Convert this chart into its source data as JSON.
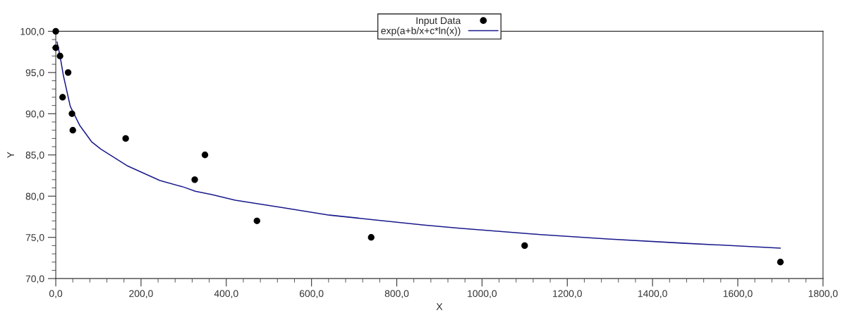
{
  "chart_data": {
    "type": "scatter",
    "xlabel": "X",
    "ylabel": "Y",
    "xlim": [
      0,
      1800
    ],
    "xticks": [
      {
        "value": 0,
        "label": "0,0"
      },
      {
        "value": 200,
        "label": "200,0"
      },
      {
        "value": 400,
        "label": "400,0"
      },
      {
        "value": 600,
        "label": "600,0"
      },
      {
        "value": 800,
        "label": "800,0"
      },
      {
        "value": 1000,
        "label": "1000,0"
      },
      {
        "value": 1200,
        "label": "1200,0"
      },
      {
        "value": 1400,
        "label": "1400,0"
      },
      {
        "value": 1600,
        "label": "1600,0"
      },
      {
        "value": 1800,
        "label": "1800,0"
      }
    ],
    "ylim": [
      70,
      100
    ],
    "yticks": [
      {
        "value": 70,
        "label": "70,0"
      },
      {
        "value": 75,
        "label": "75,0"
      },
      {
        "value": 80,
        "label": "80,0"
      },
      {
        "value": 85,
        "label": "85,0"
      },
      {
        "value": 90,
        "label": "90,0"
      },
      {
        "value": 95,
        "label": "95,0"
      },
      {
        "value": 100,
        "label": "100,0"
      }
    ],
    "grid": false,
    "legend": "top",
    "series": [
      {
        "name": "Input Data",
        "marker": "circle",
        "color": "#000000",
        "x": [
          0,
          0,
          10,
          29,
          16,
          38,
          40,
          164,
          326,
          350,
          472,
          740,
          1100,
          1700
        ],
        "values": [
          100,
          98,
          97,
          95,
          92,
          90,
          88,
          87,
          82,
          85,
          77,
          75,
          74,
          72
        ]
      },
      {
        "name": "exp(a+b/x+c*ln(x))",
        "type": "line",
        "marker": "none",
        "line_style": "solid",
        "color": "#1a1a8c",
        "x": [
          3,
          10,
          18,
          34,
          56,
          84,
          106,
          167,
          244,
          300,
          327,
          366,
          421,
          532,
          642,
          753,
          864,
          947,
          1120,
          1295,
          1469,
          1700
        ],
        "values": [
          98.7,
          97,
          94.6,
          90.9,
          88.6,
          86.6,
          85.7,
          83.7,
          81.9,
          81.1,
          80.6,
          80.2,
          79.5,
          78.6,
          77.7,
          77.1,
          76.5,
          76.1,
          75.4,
          74.8,
          74.3,
          73.7
        ]
      }
    ]
  }
}
